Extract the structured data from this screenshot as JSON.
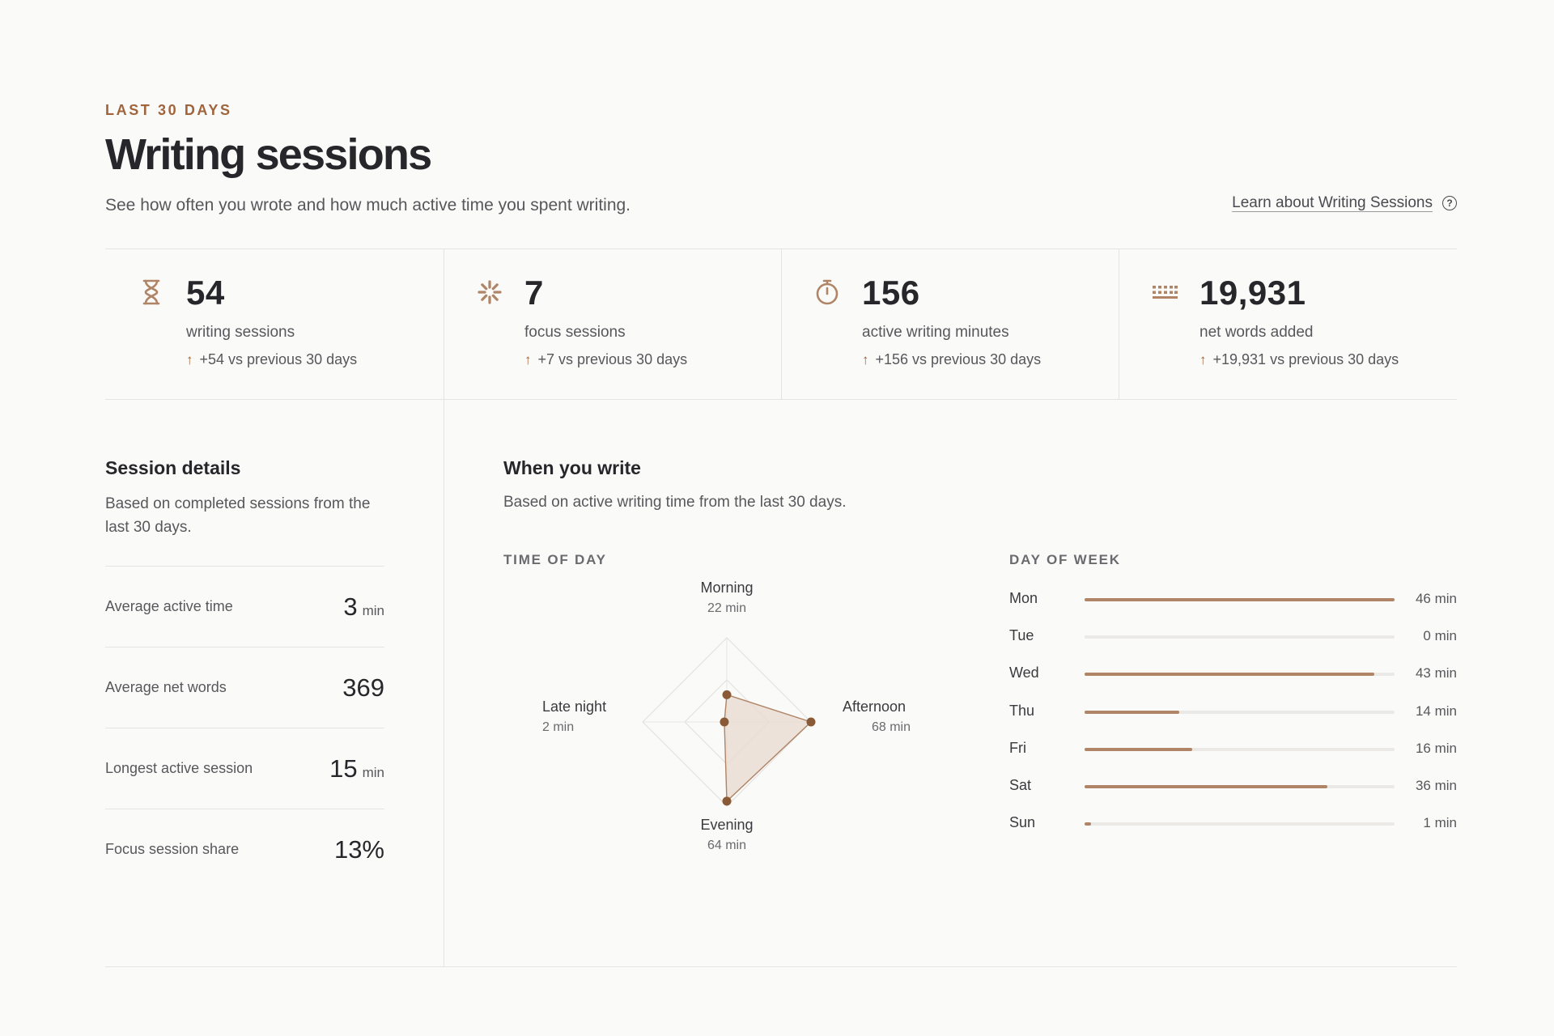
{
  "header": {
    "eyebrow": "LAST 30 DAYS",
    "title": "Writing sessions",
    "subtitle": "See how often you wrote and how much active time you spent writing.",
    "learn_link": "Learn about Writing Sessions"
  },
  "stats": [
    {
      "icon": "hourglass-icon",
      "value": "54",
      "label": "writing sessions",
      "delta": "+54 vs previous 30 days"
    },
    {
      "icon": "focus-icon",
      "value": "7",
      "label": "focus sessions",
      "delta": "+7 vs previous 30 days"
    },
    {
      "icon": "stopwatch-icon",
      "value": "156",
      "label": "active writing minutes",
      "delta": "+156 vs previous 30 days"
    },
    {
      "icon": "keyboard-icon",
      "value": "19,931",
      "label": "net words added",
      "delta": "+19,931 vs previous 30 days"
    }
  ],
  "session_details": {
    "title": "Session details",
    "description": "Based on completed sessions from the last 30 days.",
    "rows": [
      {
        "label": "Average active time",
        "value": "3",
        "unit": "min"
      },
      {
        "label": "Average net words",
        "value": "369",
        "unit": ""
      },
      {
        "label": "Longest active session",
        "value": "15",
        "unit": "min"
      },
      {
        "label": "Focus session share",
        "value": "13%",
        "unit": ""
      }
    ]
  },
  "when_you_write": {
    "title": "When you write",
    "description": "Based on active writing time from the last 30 days.",
    "time_of_day_label": "TIME OF DAY",
    "day_of_week_label": "DAY OF WEEK"
  },
  "colors": {
    "accent": "#a0643c",
    "bar": "#b08466",
    "radar_fill": "#e9ddd3",
    "radar_point": "#8a5a36"
  },
  "chart_data": [
    {
      "type": "radar",
      "axes": [
        {
          "name": "Morning",
          "value": 22,
          "label": "22 min"
        },
        {
          "name": "Afternoon",
          "value": 68,
          "label": "68 min"
        },
        {
          "name": "Evening",
          "value": 64,
          "label": "64 min"
        },
        {
          "name": "Late night",
          "value": 2,
          "label": "2 min"
        }
      ],
      "max": 68
    },
    {
      "type": "bar",
      "orientation": "horizontal",
      "categories": [
        "Mon",
        "Tue",
        "Wed",
        "Thu",
        "Fri",
        "Sat",
        "Sun"
      ],
      "values": [
        46,
        0,
        43,
        14,
        16,
        36,
        1
      ],
      "value_labels": [
        "46 min",
        "0 min",
        "43 min",
        "14 min",
        "16 min",
        "36 min",
        "1 min"
      ],
      "max": 46
    }
  ]
}
